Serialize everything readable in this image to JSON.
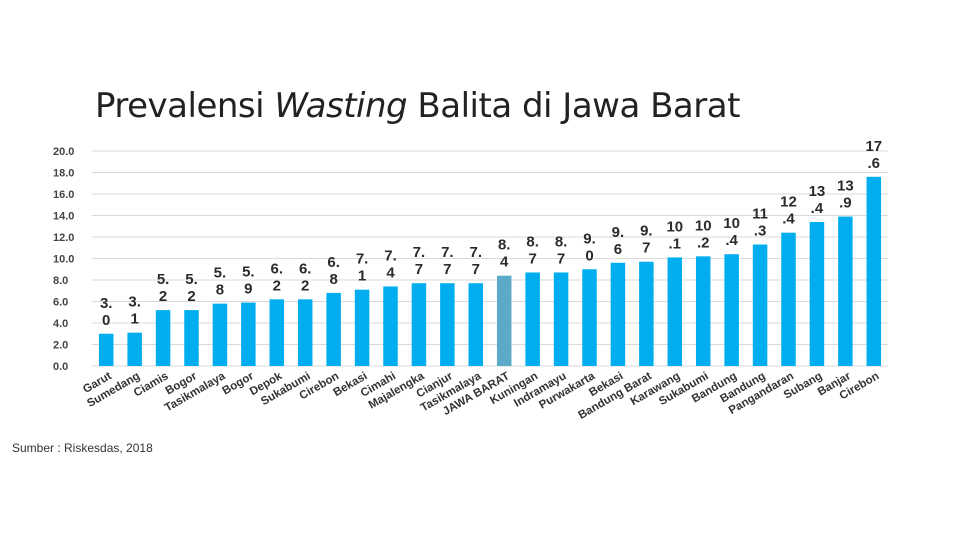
{
  "slide": {
    "title_pre": "Prevalensi ",
    "title_em": "Wasting",
    "title_post": " Balita di Jawa Barat",
    "source": "Sumber : Riskesdas, 2018"
  },
  "colors": {
    "bar": "#00aeef",
    "highlight": "#5aaac8",
    "grid": "#d9d9d9"
  },
  "chart_data": {
    "type": "bar",
    "title": "",
    "xlabel": "",
    "ylabel": "",
    "ylim": [
      0,
      20
    ],
    "yticks": [
      "0.0",
      "2.0",
      "4.0",
      "6.0",
      "8.0",
      "10.0",
      "12.0",
      "14.0",
      "16.0",
      "18.0",
      "20.0"
    ],
    "grid": true,
    "legend": "none",
    "highlight_category": "JAWA BARAT",
    "categories": [
      "Garut",
      "Sumedang",
      "Ciamis",
      "Bogor",
      "Tasikmalaya",
      "Bogor",
      "Depok",
      "Sukabumi",
      "Cirebon",
      "Bekasi",
      "Cimahi",
      "Majalengka",
      "Cianjur",
      "Tasikmalaya",
      "JAWA BARAT",
      "Kuningan",
      "Indramayu",
      "Purwakarta",
      "Bekasi",
      "Bandung Barat",
      "Karawang",
      "Sukabumi",
      "Bandung",
      "Bandung",
      "Pangandaran",
      "Subang",
      "Banjar",
      "Cirebon"
    ],
    "values": [
      3.0,
      3.1,
      5.2,
      5.2,
      5.8,
      5.9,
      6.2,
      6.2,
      6.8,
      7.1,
      7.4,
      7.7,
      7.7,
      7.7,
      8.4,
      8.7,
      8.7,
      9.0,
      9.6,
      9.7,
      10.1,
      10.2,
      10.4,
      11.3,
      12.4,
      13.4,
      13.9,
      17.6
    ],
    "value_labels": [
      [
        "3.",
        "0"
      ],
      [
        "3.",
        "1"
      ],
      [
        "5.",
        "2"
      ],
      [
        "5.",
        "2"
      ],
      [
        "5.",
        "8"
      ],
      [
        "5.",
        "9"
      ],
      [
        "6.",
        "2"
      ],
      [
        "6.",
        "2"
      ],
      [
        "6.",
        "8"
      ],
      [
        "7.",
        "1"
      ],
      [
        "7.",
        "4"
      ],
      [
        "7.",
        "7"
      ],
      [
        "7.",
        "7"
      ],
      [
        "7.",
        "7"
      ],
      [
        "8.",
        "4"
      ],
      [
        "8.",
        "7"
      ],
      [
        "8.",
        "7"
      ],
      [
        "9.",
        "0"
      ],
      [
        "9.",
        "6"
      ],
      [
        "9.",
        "7"
      ],
      [
        "10",
        ".1"
      ],
      [
        "10",
        ".2"
      ],
      [
        "10",
        ".4"
      ],
      [
        "11",
        ".3"
      ],
      [
        "12",
        ".4"
      ],
      [
        "13",
        ".4"
      ],
      [
        "13",
        ".9"
      ],
      [
        "17",
        ".6"
      ]
    ]
  }
}
